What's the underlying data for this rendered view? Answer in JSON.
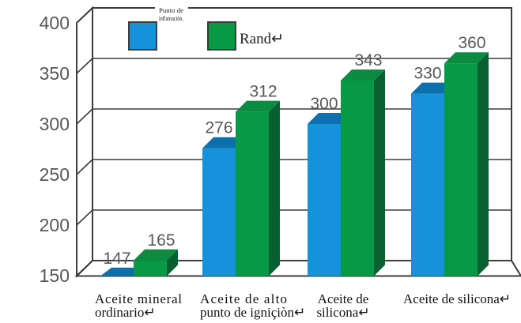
{
  "chart_data": {
    "type": "bar",
    "style": "3d-column",
    "title": "",
    "xlabel": "",
    "ylabel": "",
    "ylim": [
      150,
      400
    ],
    "yticks": [
      400,
      350,
      300,
      250,
      200,
      150
    ],
    "grid": true,
    "legend_position": "top-inside",
    "categories": [
      [
        "Aceite mineral",
        "ordinario↵"
      ],
      [
        "Aceite de alto",
        "punto de igniçiòn↵"
      ],
      [
        "Aceite de",
        "silicona↵"
      ],
      [
        "Aceite de silicona↵"
      ]
    ],
    "series": [
      {
        "key": "flash-point",
        "name_lines": [
          "Punto de",
          "inflamación."
        ],
        "values": [
          147,
          276,
          300,
          330
        ],
        "color": "#1492DA",
        "color_top": "#0B70AC"
      },
      {
        "key": "rand",
        "name_lines": [
          "Rand↵"
        ],
        "values": [
          165,
          312,
          343,
          360
        ],
        "color": "#069A46",
        "color_top": "#0B8C41",
        "color_side": "#085F31"
      }
    ],
    "colors": {
      "axis": "#3c3c3c",
      "tick_label": "#575757",
      "value_label": "#575757",
      "category_label": "#111111",
      "background": "#ffffff"
    }
  }
}
